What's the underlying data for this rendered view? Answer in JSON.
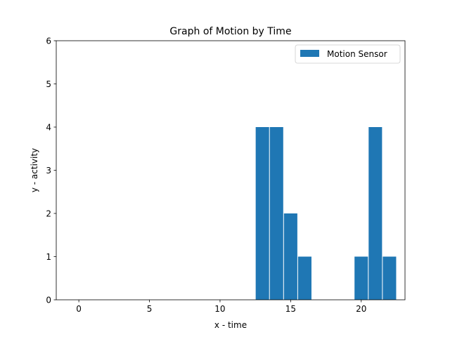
{
  "chart_data": {
    "type": "bar",
    "title": "Graph of Motion by Time",
    "xlabel": "x - time",
    "ylabel": "y - activity",
    "xlim": [
      -1.6,
      23.1
    ],
    "ylim": [
      0,
      6
    ],
    "xticks": [
      0,
      5,
      10,
      15,
      20
    ],
    "yticks": [
      0,
      1,
      2,
      3,
      4,
      5,
      6
    ],
    "grid": false,
    "legend": {
      "placement": "top-right",
      "entries": [
        "Motion Sensor"
      ]
    },
    "series": [
      {
        "name": "Motion Sensor",
        "color": "#1f77b4",
        "bar_width": 0.95,
        "x": [
          13,
          14,
          15,
          16,
          20,
          21,
          22
        ],
        "values": [
          4,
          4,
          2,
          1,
          1,
          4,
          1
        ]
      }
    ]
  }
}
